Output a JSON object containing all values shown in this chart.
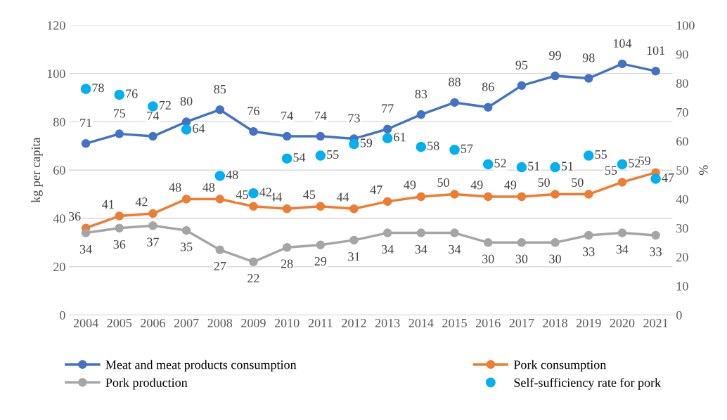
{
  "chart_data": {
    "type": "line",
    "categories": [
      "2004",
      "2005",
      "2006",
      "2007",
      "2008",
      "2009",
      "2010",
      "2011",
      "2012",
      "2013",
      "2014",
      "2015",
      "2016",
      "2017",
      "2018",
      "2019",
      "2020",
      "2021"
    ],
    "ylabel": "kg per capita",
    "y2label": "%",
    "ylim": [
      0,
      120
    ],
    "yticks": [
      0,
      20,
      40,
      60,
      80,
      100,
      120
    ],
    "y2lim": [
      0,
      100
    ],
    "y2ticks": [
      0,
      10,
      20,
      30,
      40,
      50,
      60,
      70,
      80,
      90,
      100
    ],
    "grid": "y",
    "legend": "bottom",
    "marker": "circle",
    "data_labels": true,
    "series": [
      {
        "name": "Meat and meat products consumption",
        "color": "#4472c4",
        "values": [
          71,
          75,
          74,
          80,
          85,
          76,
          74,
          74,
          73,
          77,
          83,
          88,
          86,
          95,
          99,
          98,
          104,
          101
        ]
      },
      {
        "name": "Pork consumption",
        "color": "#ed7d31",
        "values": [
          36,
          41,
          42,
          48,
          48,
          45,
          44,
          45,
          44,
          47,
          49,
          50,
          49,
          49,
          50,
          50,
          55,
          59
        ]
      },
      {
        "name": "Pork production",
        "color": "#a5a5a5",
        "values": [
          34,
          36,
          37,
          35,
          27,
          22,
          28,
          29,
          31,
          34,
          34,
          34,
          30,
          30,
          30,
          33,
          34,
          33
        ]
      },
      {
        "name": "Self-sufficiency rate for pork",
        "color": "#00b0f0",
        "type": "scatter",
        "axis": "y2",
        "values": [
          78,
          76,
          72,
          64,
          48,
          42,
          54,
          55,
          59,
          61,
          58,
          57,
          52,
          51,
          51,
          55,
          52,
          47
        ]
      }
    ]
  }
}
